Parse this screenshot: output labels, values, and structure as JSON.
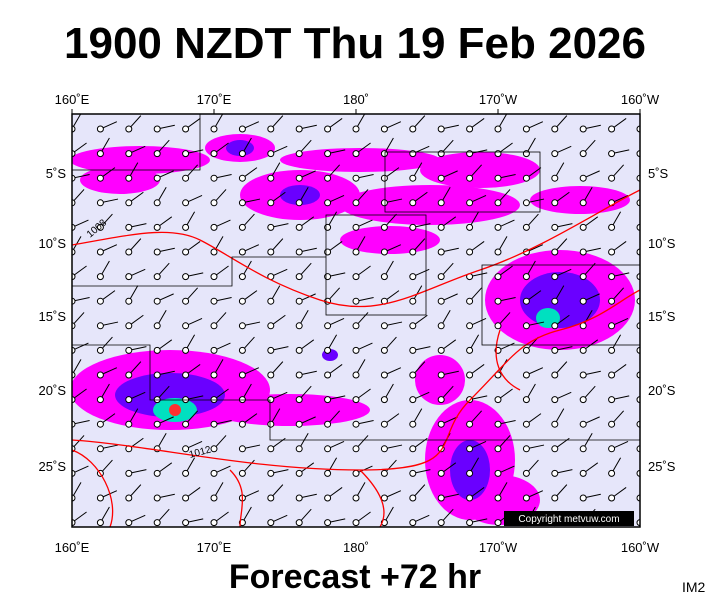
{
  "header": {
    "title": "1900 NZDT Thu 19 Feb 2026"
  },
  "map": {
    "lon_labels": [
      "160˚E",
      "170˚E",
      "180˚",
      "170˚W",
      "160˚W"
    ],
    "lat_labels": [
      "5˚S",
      "10˚S",
      "15˚S",
      "20˚S",
      "25˚S"
    ],
    "isobar_labels": [
      "1008",
      "1012"
    ],
    "copyright": "Copyright metvuw.com"
  },
  "footer": {
    "forecast": "Forecast +72 hr",
    "id": "IM2"
  }
}
